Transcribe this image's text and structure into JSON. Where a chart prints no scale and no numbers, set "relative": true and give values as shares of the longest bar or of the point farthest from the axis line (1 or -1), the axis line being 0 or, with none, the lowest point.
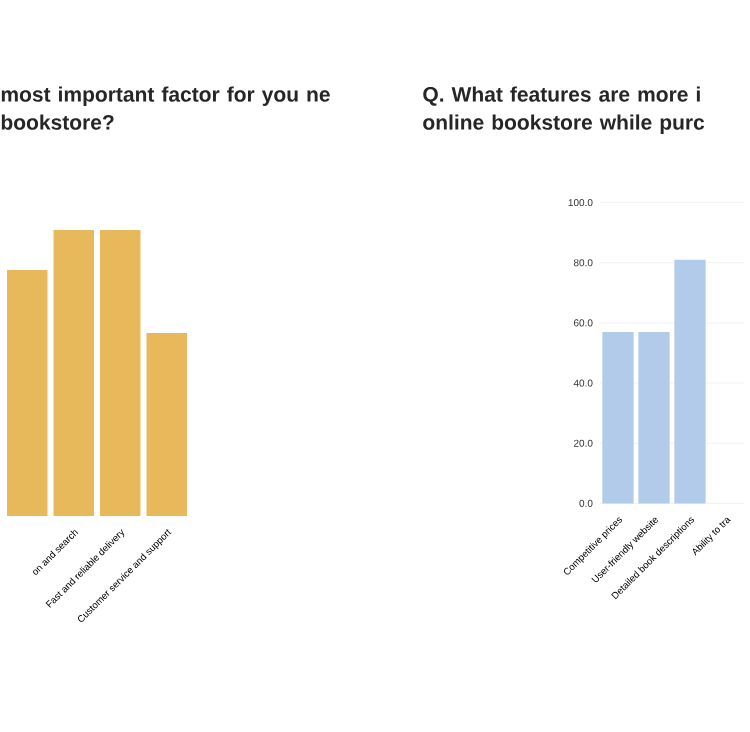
{
  "chart_data": [
    {
      "type": "bar",
      "title": "most important factor for you ne bookstore?",
      "categories": [
        null,
        "on and search",
        "Fast and reliable delivery",
        "Customer service and support"
      ],
      "values": [
        0.86,
        1,
        1,
        0.64
      ],
      "color": "#e8b95a",
      "relative": true
    },
    {
      "type": "bar",
      "title": "Q. What features are more i online bookstore while purc",
      "categories": [
        "Competitive prices",
        "User-friendly website",
        "Detailed book descriptions",
        "Ability to tra"
      ],
      "values": [
        57,
        57,
        81,
        null
      ],
      "color": "#b3cbeb",
      "ylim": [
        0,
        100
      ],
      "yticks": [
        {
          "value": 0,
          "label": "0.0"
        },
        {
          "value": 20,
          "label": "20.0"
        },
        {
          "value": 40,
          "label": "40.0"
        },
        {
          "value": 60,
          "label": "60.0"
        },
        {
          "value": 80,
          "label": "80.0"
        },
        {
          "value": 100,
          "label": "100.0"
        }
      ],
      "grid": "y"
    }
  ]
}
